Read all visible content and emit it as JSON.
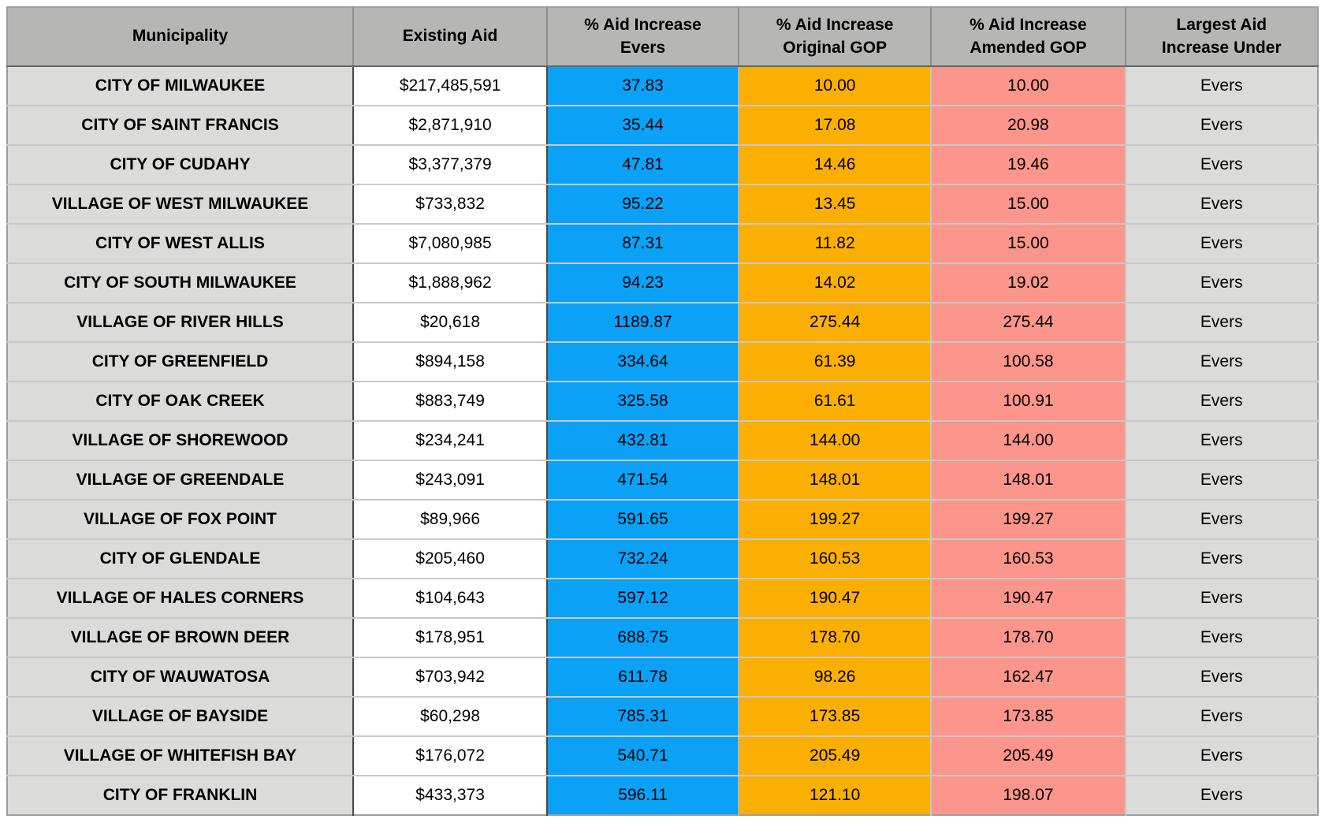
{
  "colors": {
    "header_bg": "#b6b6b4",
    "municipality_col_bg": "#dbdbd9",
    "existing_aid_col_bg": "#ffffff",
    "evers_col_bg": "#0aa1f7",
    "original_gop_col_bg": "#fcaf03",
    "amended_gop_col_bg": "#fc958b",
    "largest_col_bg": "#dbdbd9",
    "grid_line": "#c9c9c9"
  },
  "table": {
    "header": {
      "cells": [
        {
          "key": "municipality",
          "lines": [
            "Municipality"
          ]
        },
        {
          "key": "existing-aid",
          "lines": [
            "Existing Aid"
          ]
        },
        {
          "key": "evers",
          "lines": [
            "% Aid Increase",
            "Evers"
          ]
        },
        {
          "key": "original-gop",
          "lines": [
            "% Aid Increase",
            "Original GOP"
          ]
        },
        {
          "key": "amended-gop",
          "lines": [
            "% Aid Increase",
            "Amended GOP"
          ]
        },
        {
          "key": "largest-under",
          "lines": [
            "Largest Aid",
            "Increase Under"
          ]
        }
      ],
      "col_widths": [
        "26.4%",
        "14.8%",
        "14.6%",
        "14.7%",
        "14.8%",
        "14.7%"
      ]
    },
    "rows": [
      [
        "CITY OF MILWAUKEE",
        "$217,485,591",
        "37.83",
        "10.00",
        "10.00",
        "Evers"
      ],
      [
        "CITY OF SAINT FRANCIS",
        "$2,871,910",
        "35.44",
        "17.08",
        "20.98",
        "Evers"
      ],
      [
        "CITY OF CUDAHY",
        "$3,377,379",
        "47.81",
        "14.46",
        "19.46",
        "Evers"
      ],
      [
        "VILLAGE OF WEST MILWAUKEE",
        "$733,832",
        "95.22",
        "13.45",
        "15.00",
        "Evers"
      ],
      [
        "CITY OF WEST ALLIS",
        "$7,080,985",
        "87.31",
        "11.82",
        "15.00",
        "Evers"
      ],
      [
        "CITY OF SOUTH MILWAUKEE",
        "$1,888,962",
        "94.23",
        "14.02",
        "19.02",
        "Evers"
      ],
      [
        "VILLAGE OF RIVER HILLS",
        "$20,618",
        "1189.87",
        "275.44",
        "275.44",
        "Evers"
      ],
      [
        "CITY OF GREENFIELD",
        "$894,158",
        "334.64",
        "61.39",
        "100.58",
        "Evers"
      ],
      [
        "CITY OF OAK CREEK",
        "$883,749",
        "325.58",
        "61.61",
        "100.91",
        "Evers"
      ],
      [
        "VILLAGE OF SHOREWOOD",
        "$234,241",
        "432.81",
        "144.00",
        "144.00",
        "Evers"
      ],
      [
        "VILLAGE OF GREENDALE",
        "$243,091",
        "471.54",
        "148.01",
        "148.01",
        "Evers"
      ],
      [
        "VILLAGE OF FOX POINT",
        "$89,966",
        "591.65",
        "199.27",
        "199.27",
        "Evers"
      ],
      [
        "CITY OF GLENDALE",
        "$205,460",
        "732.24",
        "160.53",
        "160.53",
        "Evers"
      ],
      [
        "VILLAGE OF HALES CORNERS",
        "$104,643",
        "597.12",
        "190.47",
        "190.47",
        "Evers"
      ],
      [
        "VILLAGE OF BROWN DEER",
        "$178,951",
        "688.75",
        "178.70",
        "178.70",
        "Evers"
      ],
      [
        "CITY OF WAUWATOSA",
        "$703,942",
        "611.78",
        "98.26",
        "162.47",
        "Evers"
      ],
      [
        "VILLAGE OF BAYSIDE",
        "$60,298",
        "785.31",
        "173.85",
        "173.85",
        "Evers"
      ],
      [
        "VILLAGE OF WHITEFISH BAY",
        "$176,072",
        "540.71",
        "205.49",
        "205.49",
        "Evers"
      ],
      [
        "CITY OF FRANKLIN",
        "$433,373",
        "596.11",
        "121.10",
        "198.07",
        "Evers"
      ]
    ]
  },
  "chart_data": {
    "type": "table",
    "title": "",
    "columns": [
      "Municipality",
      "Existing Aid",
      "% Aid Increase Evers",
      "% Aid Increase Original GOP",
      "% Aid Increase Amended GOP",
      "Largest Aid Increase Under"
    ],
    "rows": [
      [
        "CITY OF MILWAUKEE",
        "$217,485,591",
        37.83,
        10.0,
        10.0,
        "Evers"
      ],
      [
        "CITY OF SAINT FRANCIS",
        "$2,871,910",
        35.44,
        17.08,
        20.98,
        "Evers"
      ],
      [
        "CITY OF CUDAHY",
        "$3,377,379",
        47.81,
        14.46,
        19.46,
        "Evers"
      ],
      [
        "VILLAGE OF WEST MILWAUKEE",
        "$733,832",
        95.22,
        13.45,
        15.0,
        "Evers"
      ],
      [
        "CITY OF WEST ALLIS",
        "$7,080,985",
        87.31,
        11.82,
        15.0,
        "Evers"
      ],
      [
        "CITY OF SOUTH MILWAUKEE",
        "$1,888,962",
        94.23,
        14.02,
        19.02,
        "Evers"
      ],
      [
        "VILLAGE OF RIVER HILLS",
        "$20,618",
        1189.87,
        275.44,
        275.44,
        "Evers"
      ],
      [
        "CITY OF GREENFIELD",
        "$894,158",
        334.64,
        61.39,
        100.58,
        "Evers"
      ],
      [
        "CITY OF OAK CREEK",
        "$883,749",
        325.58,
        61.61,
        100.91,
        "Evers"
      ],
      [
        "VILLAGE OF SHOREWOOD",
        "$234,241",
        432.81,
        144.0,
        144.0,
        "Evers"
      ],
      [
        "VILLAGE OF GREENDALE",
        "$243,091",
        471.54,
        148.01,
        148.01,
        "Evers"
      ],
      [
        "VILLAGE OF FOX POINT",
        "$89,966",
        591.65,
        199.27,
        199.27,
        "Evers"
      ],
      [
        "CITY OF GLENDALE",
        "$205,460",
        732.24,
        160.53,
        160.53,
        "Evers"
      ],
      [
        "VILLAGE OF HALES CORNERS",
        "$104,643",
        597.12,
        190.47,
        190.47,
        "Evers"
      ],
      [
        "VILLAGE OF BROWN DEER",
        "$178,951",
        688.75,
        178.7,
        178.7,
        "Evers"
      ],
      [
        "CITY OF WAUWATOSA",
        "$703,942",
        611.78,
        98.26,
        162.47,
        "Evers"
      ],
      [
        "VILLAGE OF BAYSIDE",
        "$60,298",
        785.31,
        173.85,
        173.85,
        "Evers"
      ],
      [
        "VILLAGE OF WHITEFISH BAY",
        "$176,072",
        540.71,
        205.49,
        205.49,
        "Evers"
      ],
      [
        "CITY OF FRANKLIN",
        "$433,373",
        596.11,
        121.1,
        198.07,
        "Evers"
      ]
    ],
    "column_colors": [
      "#dbdbd9",
      "#ffffff",
      "#0aa1f7",
      "#fcaf03",
      "#fc958b",
      "#dbdbd9"
    ],
    "legend_position": "none",
    "grid": true
  }
}
